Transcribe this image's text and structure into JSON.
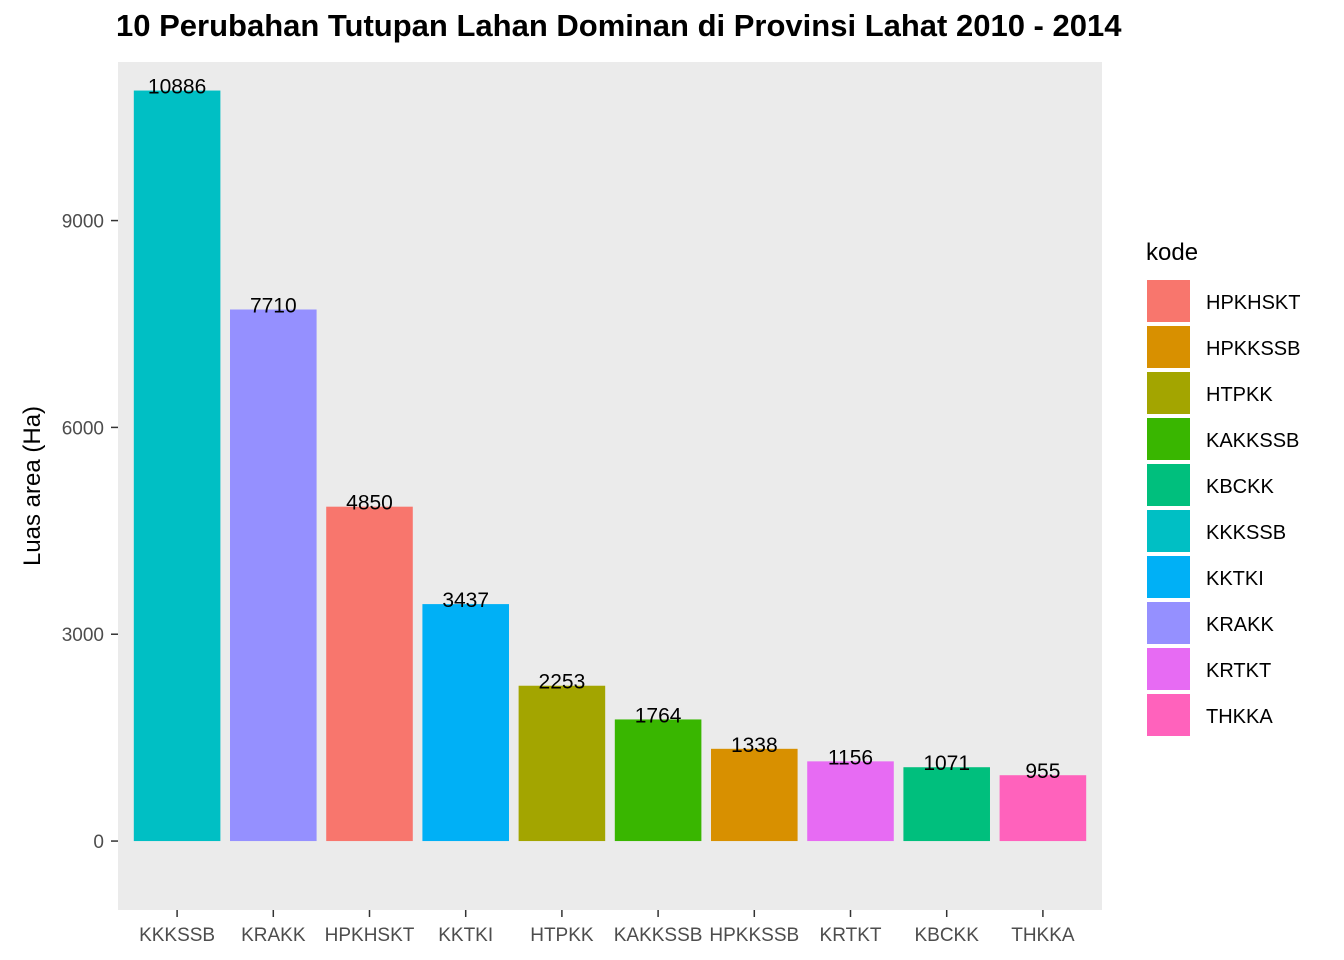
{
  "chart_data": {
    "type": "bar",
    "title": "10 Perubahan Tutupan Lahan Dominan di Provinsi Lahat 2010 - 2014",
    "xlabel": "",
    "ylabel": "Luas area (Ha)",
    "ylim": [
      -1000,
      11300
    ],
    "yticks": [
      0,
      3000,
      6000,
      9000
    ],
    "grid": false,
    "legend_position": "right",
    "legend_title": "kode",
    "categories": [
      "KKKSSB",
      "KRAKK",
      "HPKHSKT",
      "KKTKI",
      "HTPKK",
      "KAKKSSB",
      "HPKKSSB",
      "KRTKT",
      "KBCKK",
      "THKKA"
    ],
    "values": [
      10886,
      7710,
      4850,
      3437,
      2253,
      1764,
      1338,
      1156,
      1071,
      955
    ],
    "colors": {
      "HPKHSKT": "#F8766D",
      "HPKKSSB": "#D89000",
      "HTPKK": "#A3A500",
      "KAKKSSB": "#39B600",
      "KBCKK": "#00BF7D",
      "KKKSSB": "#00BFC4",
      "KKTKI": "#00B0F6",
      "KRAKK": "#9590FF",
      "KRTKT": "#E76BF3",
      "THKKA": "#FF62BC"
    },
    "legend_entries": [
      "HPKHSKT",
      "HPKKSSB",
      "HTPKK",
      "KAKKSSB",
      "KBCKK",
      "KKKSSB",
      "KKTKI",
      "KRAKK",
      "KRTKT",
      "THKKA"
    ]
  }
}
